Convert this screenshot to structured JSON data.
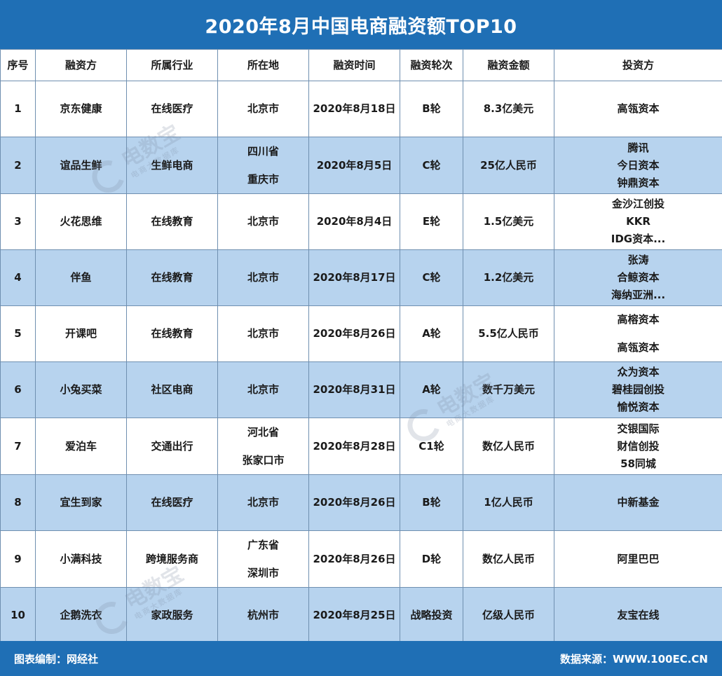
{
  "title": "2020年8月中国电商融资额TOP10",
  "headers": [
    "序号",
    "融资方",
    "所属行业",
    "所在地",
    "融资时间",
    "融资轮次",
    "融资金额",
    "投资方"
  ],
  "rows": [
    {
      "no": "1",
      "company": "京东健康",
      "industry": "在线医疗",
      "location": [
        "北京市"
      ],
      "date": "2020年8月18日",
      "round": "B轮",
      "amount": "8.3亿美元",
      "investors": [
        "高瓴资本"
      ]
    },
    {
      "no": "2",
      "company": "谊品生鲜",
      "industry": "生鲜电商",
      "location": [
        "四川省",
        "重庆市"
      ],
      "date": "2020年8月5日",
      "round": "C轮",
      "amount": "25亿人民币",
      "investors": [
        "腾讯",
        "今日资本",
        "钟鼎资本"
      ]
    },
    {
      "no": "3",
      "company": "火花思维",
      "industry": "在线教育",
      "location": [
        "北京市"
      ],
      "date": "2020年8月4日",
      "round": "E轮",
      "amount": "1.5亿美元",
      "investors": [
        "金沙江创投",
        "KKR",
        "IDG资本..."
      ]
    },
    {
      "no": "4",
      "company": "伴鱼",
      "industry": "在线教育",
      "location": [
        "北京市"
      ],
      "date": "2020年8月17日",
      "round": "C轮",
      "amount": "1.2亿美元",
      "investors": [
        "张涛",
        "合鲸资本",
        "海纳亚洲..."
      ]
    },
    {
      "no": "5",
      "company": "开课吧",
      "industry": "在线教育",
      "location": [
        "北京市"
      ],
      "date": "2020年8月26日",
      "round": "A轮",
      "amount": "5.5亿人民币",
      "investors": [
        "高榕资本",
        "高瓴资本"
      ]
    },
    {
      "no": "6",
      "company": "小兔买菜",
      "industry": "社区电商",
      "location": [
        "北京市"
      ],
      "date": "2020年8月31日",
      "round": "A轮",
      "amount": "数千万美元",
      "investors": [
        "众为资本",
        "碧桂园创投",
        "愉悦资本"
      ]
    },
    {
      "no": "7",
      "company": "爱泊车",
      "industry": "交通出行",
      "location": [
        "河北省",
        "张家口市"
      ],
      "date": "2020年8月28日",
      "round": "C1轮",
      "amount": "数亿人民币",
      "investors": [
        "交银国际",
        "财信创投",
        "58同城"
      ]
    },
    {
      "no": "8",
      "company": "宜生到家",
      "industry": "在线医疗",
      "location": [
        "北京市"
      ],
      "date": "2020年8月26日",
      "round": "B轮",
      "amount": "1亿人民币",
      "investors": [
        "中新基金"
      ]
    },
    {
      "no": "9",
      "company": "小满科技",
      "industry": "跨境服务商",
      "location": [
        "广东省",
        "深圳市"
      ],
      "date": "2020年8月26日",
      "round": "D轮",
      "amount": "数亿人民币",
      "investors": [
        "阿里巴巴"
      ]
    },
    {
      "no": "10",
      "company": "企鹅洗衣",
      "industry": "家政服务",
      "location": [
        "杭州市"
      ],
      "date": "2020年8月25日",
      "round": "战略投资",
      "amount": "亿级人民币",
      "investors": [
        "友宝在线"
      ]
    }
  ],
  "footer": {
    "left": "图表编制：网经社",
    "right": "数据来源：WWW.100EC.CN"
  },
  "watermark": {
    "main": "电数宝",
    "sub": "电商大数据库"
  },
  "colors": {
    "header_blue": "#1f6fb5",
    "row_alt": "#b7d3ee",
    "grid": "#6f8fb0"
  }
}
